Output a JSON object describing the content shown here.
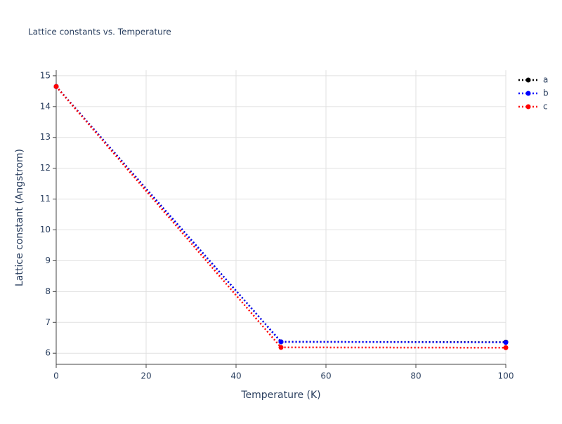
{
  "chart_data": {
    "type": "line",
    "title": "Lattice constants vs. Temperature",
    "x_label": "Temperature (K)",
    "y_label": "Lattice constant (Angstrom)",
    "x": [
      0,
      50,
      100
    ],
    "series": [
      {
        "name": "a",
        "color": "#000000",
        "values": [
          14.65,
          6.37,
          6.36
        ]
      },
      {
        "name": "b",
        "color": "#0000ff",
        "values": [
          14.65,
          6.37,
          6.35
        ]
      },
      {
        "name": "c",
        "color": "#ff0000",
        "values": [
          14.65,
          6.19,
          6.18
        ]
      }
    ],
    "xlim": [
      0,
      100
    ],
    "xticks": [
      0,
      20,
      40,
      60,
      80,
      100
    ],
    "ylim": [
      5.64,
      15.18
    ],
    "yticks": [
      6,
      7,
      8,
      9,
      10,
      11,
      12,
      13,
      14,
      15
    ],
    "grid": true,
    "line_style": "dot",
    "legend": "top-right"
  }
}
